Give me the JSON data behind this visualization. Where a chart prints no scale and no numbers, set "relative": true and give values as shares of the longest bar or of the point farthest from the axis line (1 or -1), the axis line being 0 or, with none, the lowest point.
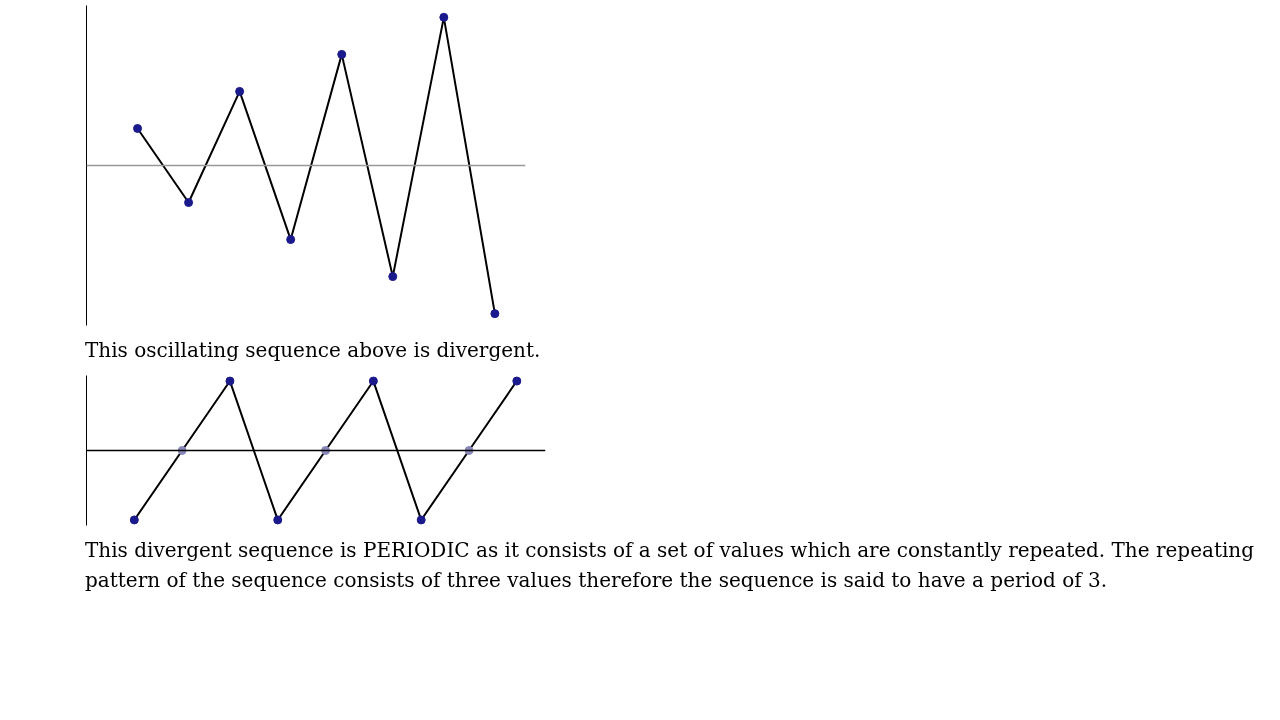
{
  "chart_data": [
    {
      "type": "line",
      "relative": true,
      "categories": [
        null,
        null,
        null,
        null,
        null,
        null,
        null,
        null
      ],
      "grid": false,
      "legend": false,
      "series": [
        {
          "color": "#000000",
          "marker": "circle",
          "colors": [
            "#1a1a8c",
            "#1a1a8c",
            "#1a1a8c",
            "#1a1a8c",
            "#1a1a8c",
            "#1a1a8c",
            "#1a1a8c",
            "#1a1a8c"
          ],
          "values": [
            0.25,
            -0.25,
            0.5,
            -0.5,
            0.75,
            -0.75,
            1,
            -1
          ]
        }
      ],
      "annotations": [
        "This oscillating sequence above is divergent."
      ]
    },
    {
      "type": "line",
      "relative": true,
      "categories": [
        null,
        null,
        null,
        null,
        null,
        null,
        null,
        null,
        null
      ],
      "grid": false,
      "legend": false,
      "series": [
        {
          "color": "#000000",
          "marker": "circle",
          "colors": [
            "#1a1a8c",
            "#8888bb",
            "#1a1a8c",
            "#1a1a8c",
            "#8888bb",
            "#1a1a8c",
            "#1a1a8c",
            "#8888bb",
            "#1a1a8c"
          ],
          "values": [
            -1,
            0,
            1,
            -1,
            0,
            1,
            -1,
            0,
            1
          ]
        }
      ],
      "annotations": [
        "This divergent sequence is PERIODIC as it consists of a set of values which are constantly repeated. The repeating pattern of the sequence consists of three values therefore the sequence is said to have a period of 3."
      ]
    }
  ]
}
